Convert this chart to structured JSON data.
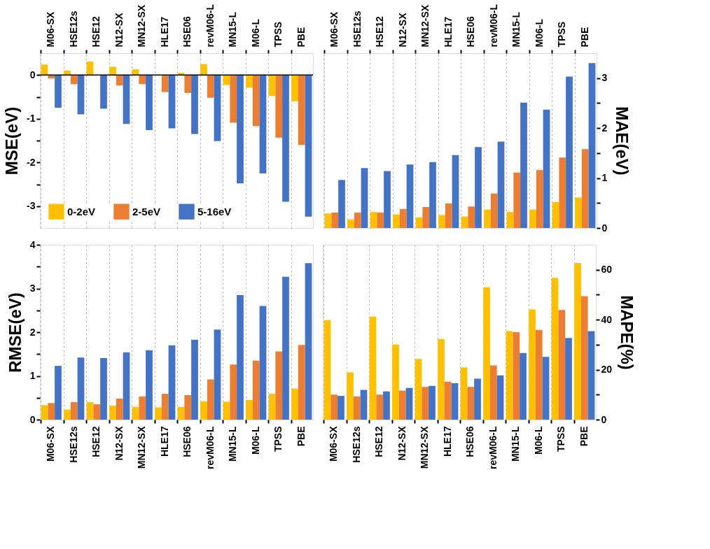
{
  "chart_data": [
    {
      "type": "bar",
      "ylabel": "MSE(eV)",
      "categories": [
        "M06-SX",
        "HSE12s",
        "HSE12",
        "N12-SX",
        "MN12-SX",
        "HLE17",
        "HSE06",
        "revM06-L",
        "MN15-L",
        "M06-L",
        "TPSS",
        "PBE"
      ],
      "series": [
        {
          "name": "0-2eV",
          "color": "#ffc000",
          "values": [
            0.24,
            0.1,
            0.31,
            0.19,
            0.13,
            0,
            0.05,
            0.25,
            -0.23,
            -0.29,
            -0.48,
            -0.6
          ]
        },
        {
          "name": "2-5eV",
          "color": "#ed7d31",
          "values": [
            -0.08,
            -0.21,
            0,
            -0.24,
            -0.21,
            -0.39,
            -0.41,
            -0.52,
            -1.09,
            -1.17,
            -1.43,
            -1.6
          ]
        },
        {
          "name": "5-16eV",
          "color": "#4472c4",
          "values": [
            -0.75,
            -0.9,
            -0.77,
            -1.12,
            -1.26,
            -1.22,
            -1.35,
            -1.51,
            -2.48,
            -2.25,
            -2.9,
            -3.24
          ]
        }
      ],
      "ylim": [
        -3.5,
        0.5
      ],
      "yticks": [
        -3,
        {
          "value": -2.5,
          "label": null
        },
        -2,
        {
          "value": -1.5,
          "label": null
        },
        -1,
        {
          "value": -0.5,
          "label": null
        },
        0
      ],
      "ref_lines": [
        {
          "axis": "y",
          "value": 0,
          "color": "#000000"
        }
      ],
      "grid": "x",
      "legend": "bottom left"
    },
    {
      "type": "bar",
      "ylabel": "MAE(eV)",
      "categories": [
        "M06-SX",
        "HSE12s",
        "HSE12",
        "N12-SX",
        "MN12-SX",
        "HLE17",
        "HSE06",
        "revM06-L",
        "MN15-L",
        "M06-L",
        "TPSS",
        "PBE"
      ],
      "series": [
        {
          "color": "#ffc000",
          "values": [
            0.29,
            0.17,
            0.32,
            0.27,
            0.21,
            0.26,
            0.23,
            0.37,
            0.32,
            0.37,
            0.52,
            0.61
          ]
        },
        {
          "color": "#ed7d31",
          "values": [
            0.31,
            0.31,
            0.31,
            0.38,
            0.42,
            0.49,
            0.43,
            0.69,
            1.11,
            1.16,
            1.41,
            1.58
          ]
        },
        {
          "color": "#4472c4",
          "values": [
            0.96,
            1.2,
            1.14,
            1.27,
            1.32,
            1.46,
            1.62,
            1.73,
            2.51,
            2.37,
            3.03,
            3.3
          ]
        }
      ],
      "ylim": [
        0,
        3.5
      ],
      "yticks": [
        0,
        {
          "value": 0.5,
          "label": null
        },
        1,
        {
          "value": 1.5,
          "label": null
        },
        2,
        {
          "value": 2.5,
          "label": null
        },
        3
      ],
      "grid": "x"
    },
    {
      "type": "bar",
      "ylabel": "RMSE(eV)",
      "categories": [
        "M06-SX",
        "HSE12s",
        "HSE12",
        "N12-SX",
        "MN12-SX",
        "HLE17",
        "HSE06",
        "revM06-L",
        "MN15-L",
        "M06-L",
        "TPSS",
        "PBE"
      ],
      "series": [
        {
          "color": "#ffc000",
          "values": [
            0.33,
            0.23,
            0.4,
            0.32,
            0.29,
            0.28,
            0.29,
            0.42,
            0.41,
            0.45,
            0.59,
            0.71
          ]
        },
        {
          "color": "#ed7d31",
          "values": [
            0.38,
            0.4,
            0.35,
            0.48,
            0.53,
            0.59,
            0.56,
            0.92,
            1.26,
            1.35,
            1.56,
            1.71
          ]
        },
        {
          "color": "#4472c4",
          "values": [
            1.23,
            1.42,
            1.41,
            1.54,
            1.59,
            1.7,
            1.83,
            2.06,
            2.85,
            2.6,
            3.27,
            3.58
          ]
        }
      ],
      "ylim": [
        0,
        4
      ],
      "yticks": [
        0,
        {
          "value": 0.5,
          "label": null
        },
        1,
        {
          "value": 1.5,
          "label": null
        },
        2,
        {
          "value": 2.5,
          "label": null
        },
        3,
        {
          "value": 3.5,
          "label": null
        },
        4
      ],
      "grid": "x"
    },
    {
      "type": "bar",
      "ylabel": "MAPE(%)",
      "categories": [
        "M06-SX",
        "HSE12s",
        "HSE12",
        "N12-SX",
        "MN12-SX",
        "HLE17",
        "HSE06",
        "revM06-L",
        "MN15-L",
        "M06-L",
        "TPSS",
        "PBE"
      ],
      "series": [
        {
          "color": "#ffc000",
          "values": [
            39.8,
            18.9,
            41.2,
            30.1,
            24.3,
            32.3,
            20.9,
            53.0,
            35.4,
            44.1,
            56.8,
            62.7
          ]
        },
        {
          "color": "#ed7d31",
          "values": [
            10.0,
            9.3,
            10.0,
            11.6,
            13.1,
            15.2,
            13.1,
            21.7,
            35.0,
            35.9,
            43.9,
            49.4
          ]
        },
        {
          "color": "#4472c4",
          "values": [
            9.5,
            11.9,
            11.3,
            12.7,
            13.5,
            14.6,
            16.4,
            17.7,
            26.7,
            25.1,
            32.7,
            35.4
          ]
        }
      ],
      "ylim": [
        0,
        70
      ],
      "yticks": [
        0,
        {
          "value": 10,
          "label": null
        },
        20,
        {
          "value": 30,
          "label": null
        },
        40,
        {
          "value": 50,
          "label": null
        },
        60
      ],
      "grid": "x"
    }
  ]
}
